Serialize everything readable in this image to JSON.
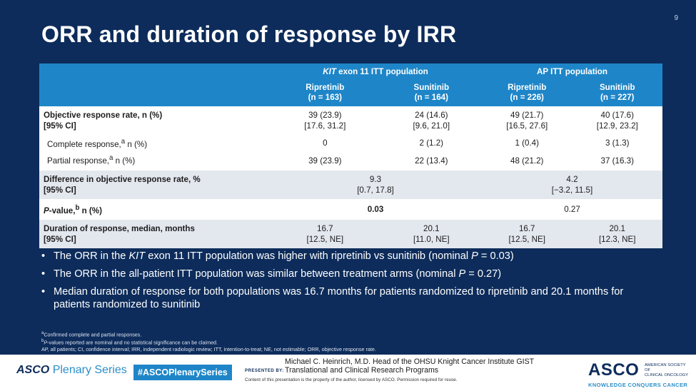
{
  "slide_number": "9",
  "title": "ORR and duration of response by IRR",
  "table": {
    "group1": {
      "gene": "KIT",
      "rest": " exon 11 ITT population"
    },
    "group2": "AP ITT population",
    "arms": [
      {
        "name": "Ripretinib",
        "n": "(n = 163)"
      },
      {
        "name": "Sunitinib",
        "n": "(n = 164)"
      },
      {
        "name": "Ripretinib",
        "n": "(n = 226)"
      },
      {
        "name": "Sunitinib",
        "n": "(n = 227)"
      }
    ],
    "orr": {
      "label1": "Objective response rate, n (%)",
      "label2": "[95% CI]",
      "values": [
        "39 (23.9)",
        "24 (14.6)",
        "49 (21.7)",
        "40 (17.6)"
      ],
      "ci": [
        "[17.6, 31.2]",
        "[9.6, 21.0]",
        "[16.5, 27.6]",
        "[12.9, 23.2]"
      ]
    },
    "cr": {
      "label": "Complete response,",
      "sup": "a",
      "label_end": " n (%)",
      "values": [
        "0",
        "2 (1.2)",
        "1 (0.4)",
        "3 (1.3)"
      ]
    },
    "pr": {
      "label": "Partial response,",
      "sup": "a",
      "label_end": " n (%)",
      "values": [
        "39 (23.9)",
        "22 (13.4)",
        "48 (21.2)",
        "37 (16.3)"
      ]
    },
    "diff": {
      "label1": "Difference in objective response rate, %",
      "label2": "[95% CI]",
      "kit": "9.3",
      "kit_ci": "[0.7, 17.8]",
      "ap": "4.2",
      "ap_ci": "[−3.2, 11.5]"
    },
    "pval": {
      "label_p": "P",
      "label_rest": "-value,",
      "sup": "b",
      "label_end": " n (%)",
      "kit": "0.03",
      "ap": "0.27"
    },
    "dor": {
      "label1": "Duration of response, median, months",
      "label2": "[95% CI]",
      "values": [
        "16.7",
        "20.1",
        "16.7",
        "20.1"
      ],
      "ci": [
        "[12.5, NE]",
        "[11.0, NE]",
        "[12.5, NE]",
        "[12.3, NE]"
      ]
    }
  },
  "bullets": {
    "b1": {
      "pre": "The ORR in the ",
      "kit": "KIT",
      "mid": " exon 11 ITT population was higher with ripretinib vs sunitinib (nominal ",
      "p": "P",
      "end": " = 0.03)"
    },
    "b2": {
      "pre": "The ORR in the all-patient ITT population was similar between treatment arms (nominal ",
      "p": "P",
      "end": " = 0.27)"
    },
    "b3": "Median duration of response for both populations was 16.7 months for patients randomized to ripretinib and 20.1 months for patients randomized to sunitinib"
  },
  "footnotes": {
    "a_sup": "a",
    "a": "Confirmed complete and partial responses.",
    "b_sup": "b",
    "b_p": "P",
    "b": "-values reported are nominal and no statistical significance can be claimed.",
    "abbrev": "AP, all patients; CI, confidence interval; IRR, independent radiologic review; ITT, intention-to-treat; NE, not estimable; ORR, objective response rate."
  },
  "footer": {
    "asco": "ASCO",
    "plenary": "Plenary Series",
    "hashtag": "#ASCOPlenarySeries",
    "presented_by": "PRESENTED BY:",
    "presenter_line1": "Michael C. Heinrich, M.D. Head of the OHSU Knight Cancer Institute GIST",
    "presenter_line2": "Translational and Clinical Research Programs",
    "disclaimer": "Content of this presentation is the property of the author, licensed by ASCO. Permission required for reuse.",
    "logo_big": "ASCO",
    "logo_soc1": "AMERICAN SOCIETY OF",
    "logo_soc2": "CLINICAL ONCOLOGY",
    "logo_tag": "KNOWLEDGE CONQUERS CANCER"
  },
  "colors": {
    "background": "#0d2c5b",
    "header": "#1e86c8",
    "band": "#e3e7ee"
  }
}
